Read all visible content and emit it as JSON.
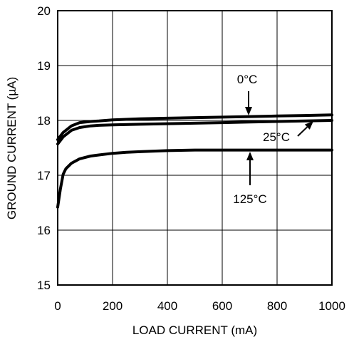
{
  "chart_data": {
    "type": "line",
    "title": "",
    "xlabel": "LOAD CURRENT (mA)",
    "ylabel": "GROUND CURRENT (µA)",
    "xlim": [
      0,
      1000
    ],
    "ylim": [
      15,
      20
    ],
    "xticks": [
      0,
      200,
      400,
      600,
      800,
      1000
    ],
    "yticks": [
      15,
      16,
      17,
      18,
      19,
      20
    ],
    "grid": true,
    "legend": "none",
    "series": [
      {
        "name": "0°C",
        "x": [
          0,
          20,
          50,
          80,
          120,
          150,
          200,
          300,
          400,
          500,
          600,
          700,
          800,
          900,
          1000
        ],
        "y": [
          17.65,
          17.78,
          17.9,
          17.96,
          17.98,
          17.99,
          18.01,
          18.03,
          18.04,
          18.05,
          18.06,
          18.07,
          18.08,
          18.09,
          18.1
        ]
      },
      {
        "name": "25°C",
        "x": [
          0,
          20,
          50,
          80,
          120,
          150,
          200,
          300,
          400,
          500,
          600,
          700,
          800,
          900,
          1000
        ],
        "y": [
          17.57,
          17.7,
          17.82,
          17.87,
          17.9,
          17.91,
          17.92,
          17.93,
          17.94,
          17.95,
          17.96,
          17.97,
          17.98,
          17.99,
          18.0
        ]
      },
      {
        "name": "125°C",
        "x": [
          0,
          10,
          20,
          30,
          50,
          80,
          120,
          150,
          200,
          250,
          300,
          400,
          500,
          600,
          700,
          800,
          900,
          1000
        ],
        "y": [
          16.42,
          16.75,
          17.02,
          17.12,
          17.22,
          17.3,
          17.35,
          17.37,
          17.4,
          17.42,
          17.43,
          17.45,
          17.46,
          17.46,
          17.46,
          17.46,
          17.46,
          17.46
        ]
      }
    ],
    "annotations": [
      {
        "text": "0°C",
        "series": "0°C"
      },
      {
        "text": "25°C",
        "series": "25°C"
      },
      {
        "text": "125°C",
        "series": "125°C"
      }
    ]
  }
}
